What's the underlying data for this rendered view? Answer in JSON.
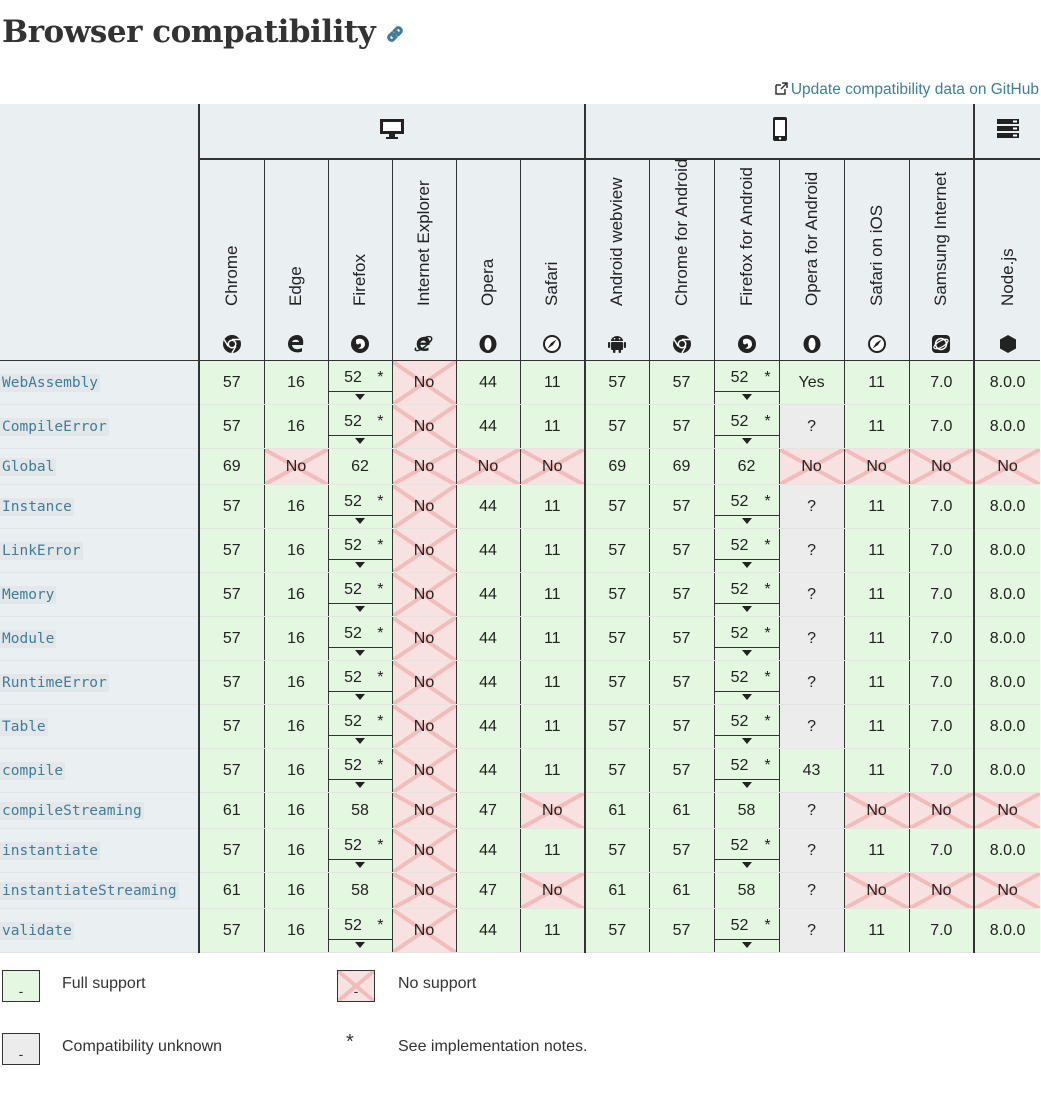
{
  "heading": "Browser compatibility",
  "github_link": "Update compatibility data on GitHub",
  "browsers": [
    {
      "name": "Chrome",
      "icon": "chrome-icon",
      "group": "desktop"
    },
    {
      "name": "Edge",
      "icon": "edge-icon",
      "group": "desktop"
    },
    {
      "name": "Firefox",
      "icon": "firefox-icon",
      "group": "desktop"
    },
    {
      "name": "Internet Explorer",
      "icon": "ie-icon",
      "group": "desktop"
    },
    {
      "name": "Opera",
      "icon": "opera-icon",
      "group": "desktop"
    },
    {
      "name": "Safari",
      "icon": "safari-icon",
      "group": "desktop"
    },
    {
      "name": "Android webview",
      "icon": "android-icon",
      "group": "mobile"
    },
    {
      "name": "Chrome for Android",
      "icon": "chrome-icon",
      "group": "mobile"
    },
    {
      "name": "Firefox for Android",
      "icon": "firefox-icon",
      "group": "mobile"
    },
    {
      "name": "Opera for Android",
      "icon": "opera-icon",
      "group": "mobile"
    },
    {
      "name": "Safari on iOS",
      "icon": "safari-icon",
      "group": "mobile"
    },
    {
      "name": "Samsung Internet",
      "icon": "samsung-icon",
      "group": "mobile"
    },
    {
      "name": "Node.js",
      "icon": "nodejs-icon",
      "group": "server"
    }
  ],
  "rows": [
    {
      "feature": "WebAssembly",
      "short": false,
      "cells": [
        "57",
        "16",
        "52*",
        "No",
        "44",
        "11",
        "57",
        "57",
        "52*",
        "Yes",
        "11",
        "7.0",
        "8.0.0"
      ]
    },
    {
      "feature": "CompileError",
      "short": false,
      "cells": [
        "57",
        "16",
        "52*",
        "No",
        "44",
        "11",
        "57",
        "57",
        "52*",
        "?",
        "11",
        "7.0",
        "8.0.0"
      ]
    },
    {
      "feature": "Global",
      "short": true,
      "cells": [
        "69",
        "No",
        "62",
        "No",
        "No",
        "No",
        "69",
        "69",
        "62",
        "No",
        "No",
        "No",
        "No"
      ]
    },
    {
      "feature": "Instance",
      "short": false,
      "cells": [
        "57",
        "16",
        "52*",
        "No",
        "44",
        "11",
        "57",
        "57",
        "52*",
        "?",
        "11",
        "7.0",
        "8.0.0"
      ]
    },
    {
      "feature": "LinkError",
      "short": false,
      "cells": [
        "57",
        "16",
        "52*",
        "No",
        "44",
        "11",
        "57",
        "57",
        "52*",
        "?",
        "11",
        "7.0",
        "8.0.0"
      ]
    },
    {
      "feature": "Memory",
      "short": false,
      "cells": [
        "57",
        "16",
        "52*",
        "No",
        "44",
        "11",
        "57",
        "57",
        "52*",
        "?",
        "11",
        "7.0",
        "8.0.0"
      ]
    },
    {
      "feature": "Module",
      "short": false,
      "cells": [
        "57",
        "16",
        "52*",
        "No",
        "44",
        "11",
        "57",
        "57",
        "52*",
        "?",
        "11",
        "7.0",
        "8.0.0"
      ]
    },
    {
      "feature": "RuntimeError",
      "short": false,
      "cells": [
        "57",
        "16",
        "52*",
        "No",
        "44",
        "11",
        "57",
        "57",
        "52*",
        "?",
        "11",
        "7.0",
        "8.0.0"
      ]
    },
    {
      "feature": "Table",
      "short": false,
      "cells": [
        "57",
        "16",
        "52*",
        "No",
        "44",
        "11",
        "57",
        "57",
        "52*",
        "?",
        "11",
        "7.0",
        "8.0.0"
      ]
    },
    {
      "feature": "compile",
      "short": false,
      "cells": [
        "57",
        "16",
        "52*",
        "No",
        "44",
        "11",
        "57",
        "57",
        "52*",
        "43",
        "11",
        "7.0",
        "8.0.0"
      ]
    },
    {
      "feature": "compileStreaming",
      "short": true,
      "cells": [
        "61",
        "16",
        "58",
        "No",
        "47",
        "No",
        "61",
        "61",
        "58",
        "?",
        "No",
        "No",
        "No"
      ]
    },
    {
      "feature": "instantiate",
      "short": false,
      "cells": [
        "57",
        "16",
        "52*",
        "No",
        "44",
        "11",
        "57",
        "57",
        "52*",
        "?",
        "11",
        "7.0",
        "8.0.0"
      ]
    },
    {
      "feature": "instantiateStreaming",
      "short": true,
      "cells": [
        "61",
        "16",
        "58",
        "No",
        "47",
        "No",
        "61",
        "61",
        "58",
        "?",
        "No",
        "No",
        "No"
      ]
    },
    {
      "feature": "validate",
      "short": false,
      "cells": [
        "57",
        "16",
        "52*",
        "No",
        "44",
        "11",
        "57",
        "57",
        "52*",
        "?",
        "11",
        "7.0",
        "8.0.0"
      ]
    }
  ],
  "legend": {
    "full_support": "Full support",
    "no_support": "No support",
    "unknown": "Compatibility unknown",
    "notes": "See implementation notes.",
    "notes_symbol": "*",
    "box_glyph": "-"
  },
  "colors": {
    "full": "#e4f8e1",
    "no": "#f8e1e1",
    "unknown": "#ececec",
    "link": "#3d7e9a"
  }
}
